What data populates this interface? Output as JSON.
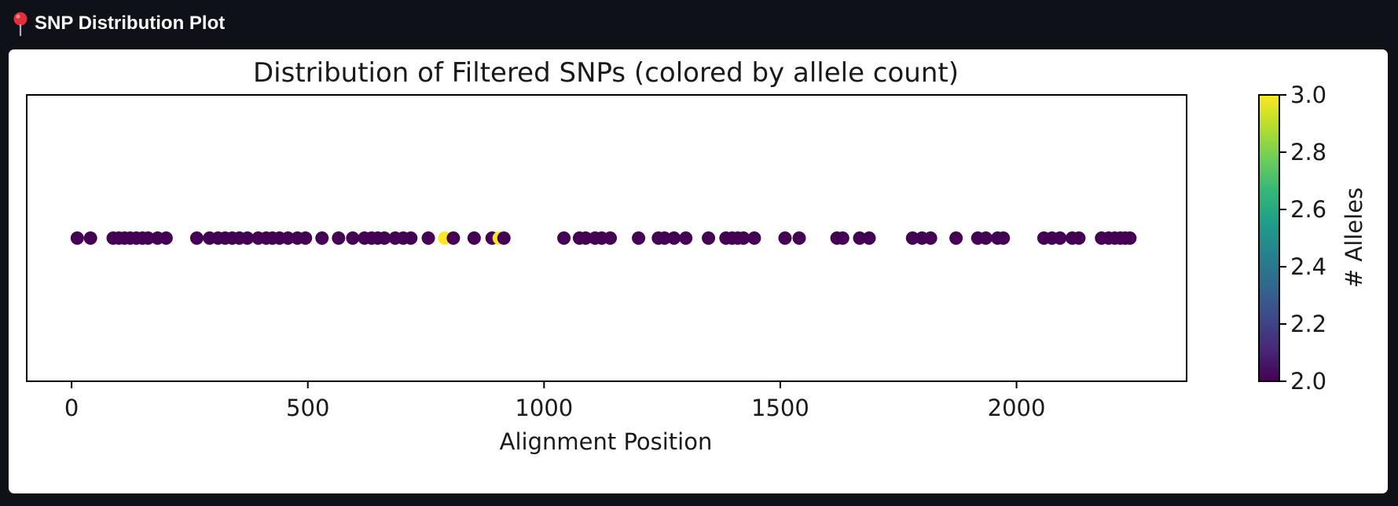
{
  "header": {
    "icon": "pin-icon",
    "title": "SNP Distribution Plot"
  },
  "chart_data": {
    "type": "scatter",
    "title": "Distribution of Filtered SNPs (colored by allele count)",
    "xlabel": "Alignment Position",
    "ylabel": "",
    "xlim": [
      -95,
      2360
    ],
    "x_ticks": [
      0,
      500,
      1000,
      1500,
      2000
    ],
    "x_tick_labels": [
      "0",
      "500",
      "1000",
      "1500",
      "2000"
    ],
    "y_value": 0,
    "ylim": [
      -1,
      1
    ],
    "colormap": "viridis",
    "colorbar": {
      "label": "# Alleles",
      "range": [
        2.0,
        3.0
      ],
      "ticks": [
        2.0,
        2.2,
        2.4,
        2.6,
        2.8,
        3.0
      ],
      "tick_labels": [
        "2.0",
        "2.2",
        "2.4",
        "2.6",
        "2.8",
        "3.0"
      ],
      "colors": [
        "#440154",
        "#482878",
        "#3e4989",
        "#31688e",
        "#26828e",
        "#1f9e89",
        "#35b779",
        "#6ece58",
        "#b5de2b",
        "#fde725"
      ]
    },
    "grid": false,
    "points": [
      {
        "x": 12,
        "alleles": 2
      },
      {
        "x": 40,
        "alleles": 2
      },
      {
        "x": 88,
        "alleles": 2
      },
      {
        "x": 100,
        "alleles": 2
      },
      {
        "x": 112,
        "alleles": 2
      },
      {
        "x": 124,
        "alleles": 2
      },
      {
        "x": 137,
        "alleles": 2
      },
      {
        "x": 150,
        "alleles": 2
      },
      {
        "x": 162,
        "alleles": 2
      },
      {
        "x": 182,
        "alleles": 2
      },
      {
        "x": 200,
        "alleles": 2
      },
      {
        "x": 265,
        "alleles": 2
      },
      {
        "x": 292,
        "alleles": 2
      },
      {
        "x": 310,
        "alleles": 2
      },
      {
        "x": 325,
        "alleles": 2
      },
      {
        "x": 340,
        "alleles": 2
      },
      {
        "x": 355,
        "alleles": 2
      },
      {
        "x": 372,
        "alleles": 2
      },
      {
        "x": 395,
        "alleles": 2
      },
      {
        "x": 412,
        "alleles": 2
      },
      {
        "x": 425,
        "alleles": 2
      },
      {
        "x": 440,
        "alleles": 2
      },
      {
        "x": 458,
        "alleles": 2
      },
      {
        "x": 478,
        "alleles": 2
      },
      {
        "x": 495,
        "alleles": 2
      },
      {
        "x": 530,
        "alleles": 2
      },
      {
        "x": 565,
        "alleles": 2
      },
      {
        "x": 595,
        "alleles": 2
      },
      {
        "x": 620,
        "alleles": 2
      },
      {
        "x": 635,
        "alleles": 2
      },
      {
        "x": 648,
        "alleles": 2
      },
      {
        "x": 662,
        "alleles": 2
      },
      {
        "x": 685,
        "alleles": 2
      },
      {
        "x": 702,
        "alleles": 2
      },
      {
        "x": 718,
        "alleles": 2
      },
      {
        "x": 755,
        "alleles": 2
      },
      {
        "x": 790,
        "alleles": 3
      },
      {
        "x": 808,
        "alleles": 2
      },
      {
        "x": 852,
        "alleles": 2
      },
      {
        "x": 890,
        "alleles": 2
      },
      {
        "x": 905,
        "alleles": 3
      },
      {
        "x": 915,
        "alleles": 2
      },
      {
        "x": 1042,
        "alleles": 2
      },
      {
        "x": 1075,
        "alleles": 2
      },
      {
        "x": 1088,
        "alleles": 2
      },
      {
        "x": 1108,
        "alleles": 2
      },
      {
        "x": 1122,
        "alleles": 2
      },
      {
        "x": 1140,
        "alleles": 2
      },
      {
        "x": 1200,
        "alleles": 2
      },
      {
        "x": 1242,
        "alleles": 2
      },
      {
        "x": 1255,
        "alleles": 2
      },
      {
        "x": 1275,
        "alleles": 2
      },
      {
        "x": 1300,
        "alleles": 2
      },
      {
        "x": 1348,
        "alleles": 2
      },
      {
        "x": 1385,
        "alleles": 2
      },
      {
        "x": 1398,
        "alleles": 2
      },
      {
        "x": 1410,
        "alleles": 2
      },
      {
        "x": 1422,
        "alleles": 2
      },
      {
        "x": 1445,
        "alleles": 2
      },
      {
        "x": 1510,
        "alleles": 2
      },
      {
        "x": 1540,
        "alleles": 2
      },
      {
        "x": 1620,
        "alleles": 2
      },
      {
        "x": 1632,
        "alleles": 2
      },
      {
        "x": 1668,
        "alleles": 2
      },
      {
        "x": 1688,
        "alleles": 2
      },
      {
        "x": 1780,
        "alleles": 2
      },
      {
        "x": 1800,
        "alleles": 2
      },
      {
        "x": 1818,
        "alleles": 2
      },
      {
        "x": 1872,
        "alleles": 2
      },
      {
        "x": 1918,
        "alleles": 2
      },
      {
        "x": 1935,
        "alleles": 2
      },
      {
        "x": 1960,
        "alleles": 2
      },
      {
        "x": 1972,
        "alleles": 2
      },
      {
        "x": 2058,
        "alleles": 2
      },
      {
        "x": 2075,
        "alleles": 2
      },
      {
        "x": 2092,
        "alleles": 2
      },
      {
        "x": 2118,
        "alleles": 2
      },
      {
        "x": 2132,
        "alleles": 2
      },
      {
        "x": 2180,
        "alleles": 2
      },
      {
        "x": 2195,
        "alleles": 2
      },
      {
        "x": 2208,
        "alleles": 2
      },
      {
        "x": 2220,
        "alleles": 2
      },
      {
        "x": 2230,
        "alleles": 2
      },
      {
        "x": 2240,
        "alleles": 2
      }
    ]
  }
}
